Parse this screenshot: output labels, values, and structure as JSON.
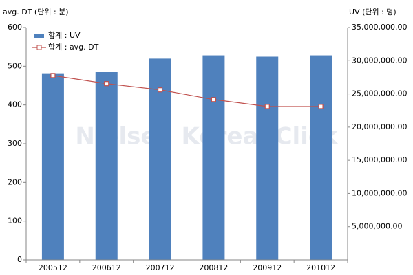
{
  "chart_data": {
    "type": "bar-line",
    "y_title": "avg. DT (단위 : 분)",
    "y2_title": "UV (단위 : 명)",
    "watermark": "Nielsen KoreanClick",
    "categories": [
      "200512",
      "200612",
      "200712",
      "200812",
      "200912",
      "201012"
    ],
    "series": [
      {
        "name": "합계 : UV",
        "type": "bar",
        "axis": "y2",
        "color": "#4f81bd",
        "values": [
          28100000,
          28300000,
          30300000,
          30800000,
          30600000,
          30800000
        ]
      },
      {
        "name": "합계 : avg. DT",
        "type": "line",
        "axis": "y",
        "color": "#c0504d",
        "values": [
          476,
          455,
          439,
          414,
          396,
          396
        ]
      }
    ],
    "ylim": [
      0,
      600
    ],
    "yticks": [
      0,
      100,
      200,
      300,
      400,
      500,
      600
    ],
    "y2lim": [
      0,
      35000000
    ],
    "y2ticks": [
      {
        "value": 5000000,
        "label": "5,000,000.00"
      },
      {
        "value": 10000000,
        "label": "10,000,000.00"
      },
      {
        "value": 15000000,
        "label": "15,000,000.00"
      },
      {
        "value": 20000000,
        "label": "20,000,000.00"
      },
      {
        "value": 25000000,
        "label": "25,000,000.00"
      },
      {
        "value": 30000000,
        "label": "30,000,000.00"
      },
      {
        "value": 35000000,
        "label": "35,000,000.00"
      }
    ]
  }
}
